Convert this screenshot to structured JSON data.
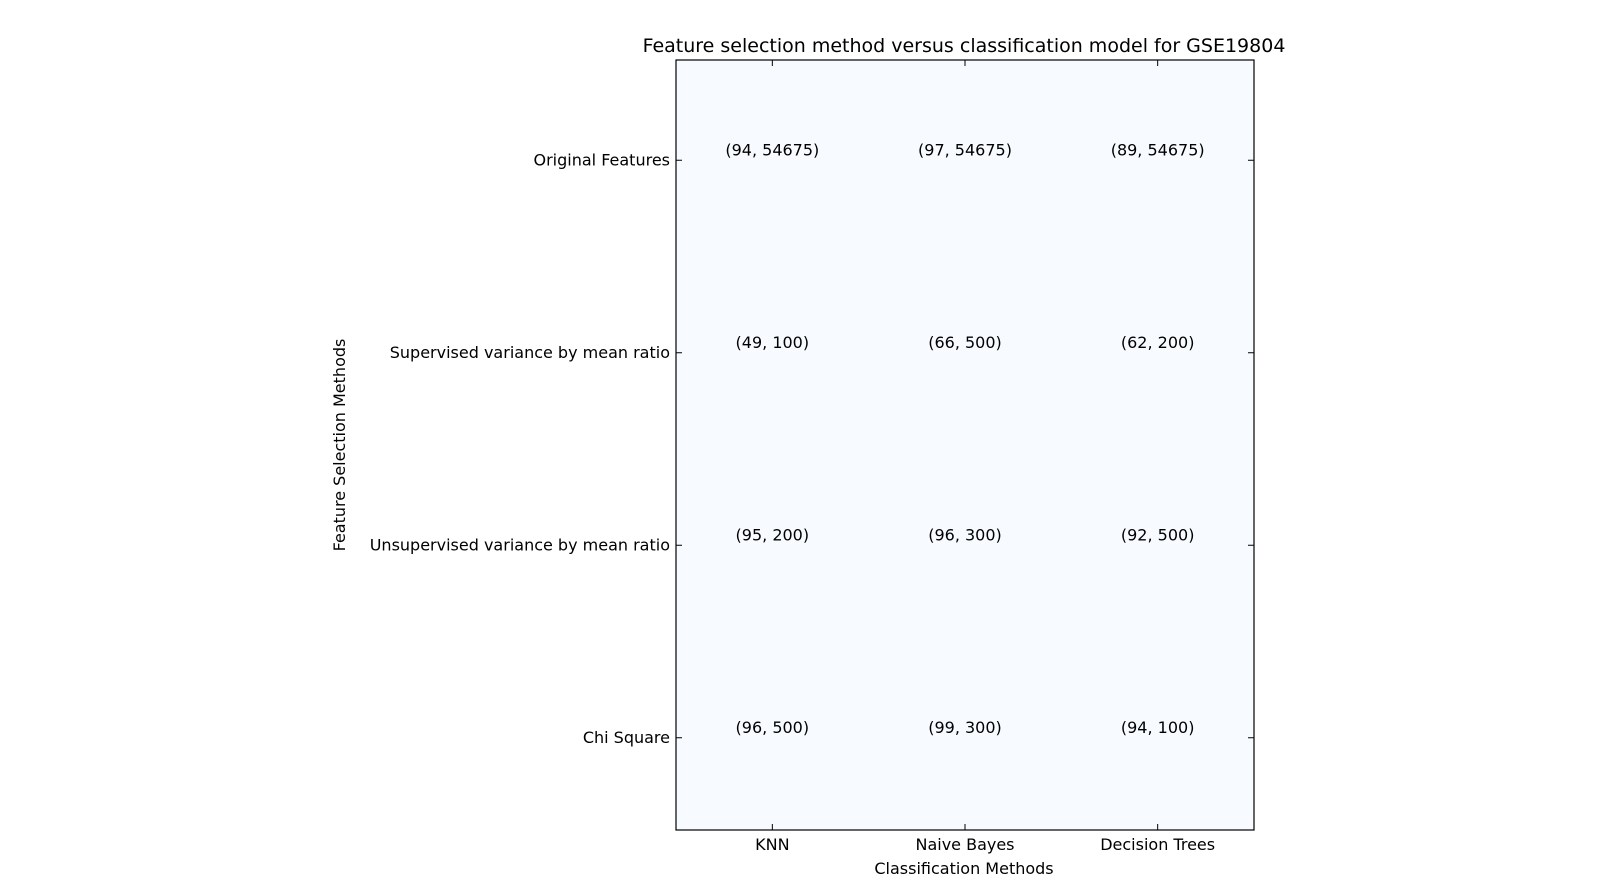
{
  "chart_data": {
    "type": "table",
    "title": "Feature selection method versus classification model for GSE19804",
    "xlabel": "Classification Methods",
    "ylabel": "Feature Selection Methods",
    "columns": [
      "KNN",
      "Naive Bayes",
      "Decision Trees"
    ],
    "rows": [
      "Original Features",
      "Supervised variance by mean ratio",
      "Unsupervised variance by mean ratio",
      "Chi Square"
    ],
    "cells": [
      [
        "(94, 54675)",
        "(97, 54675)",
        "(89, 54675)"
      ],
      [
        "(49, 100)",
        "(66, 500)",
        "(62, 200)"
      ],
      [
        "(95, 200)",
        "(96, 300)",
        "(92, 500)"
      ],
      [
        "(96, 500)",
        "(99, 300)",
        "(94, 100)"
      ]
    ],
    "cell_color": "#f7fbff",
    "grid": false
  }
}
